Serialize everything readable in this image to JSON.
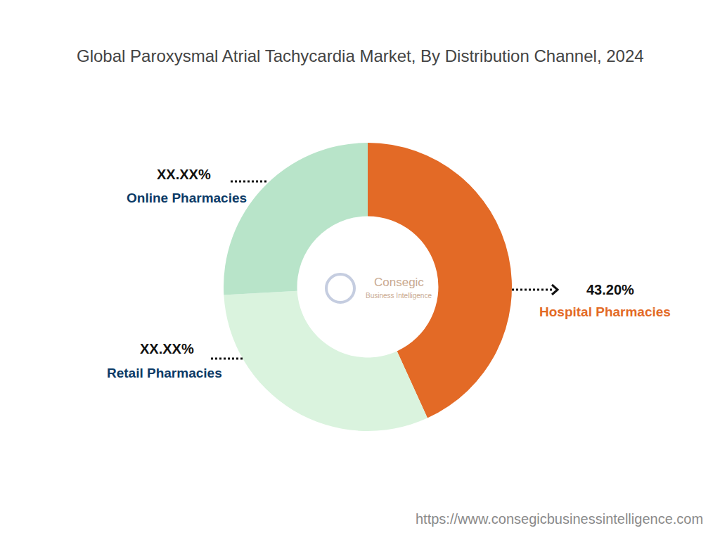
{
  "chart_data": {
    "type": "pie",
    "title": "Global Paroxysmal Atrial Tachycardia Market, By Distribution Channel, 2024",
    "categories": [
      "Hospital Pharmacies",
      "Retail Pharmacies",
      "Online Pharmacies"
    ],
    "values": [
      43.2,
      30.9,
      25.9
    ],
    "value_labels": [
      "43.20%",
      "XX.XX%",
      "XX.XX%"
    ],
    "colors": [
      "#E36A26",
      "#DAF3DE",
      "#B8E4C9"
    ],
    "data_labels": true,
    "watermark": [
      "Consegic",
      "Business Intelligence"
    ],
    "source": "https://www.consegicbusinessintelligence.com"
  }
}
